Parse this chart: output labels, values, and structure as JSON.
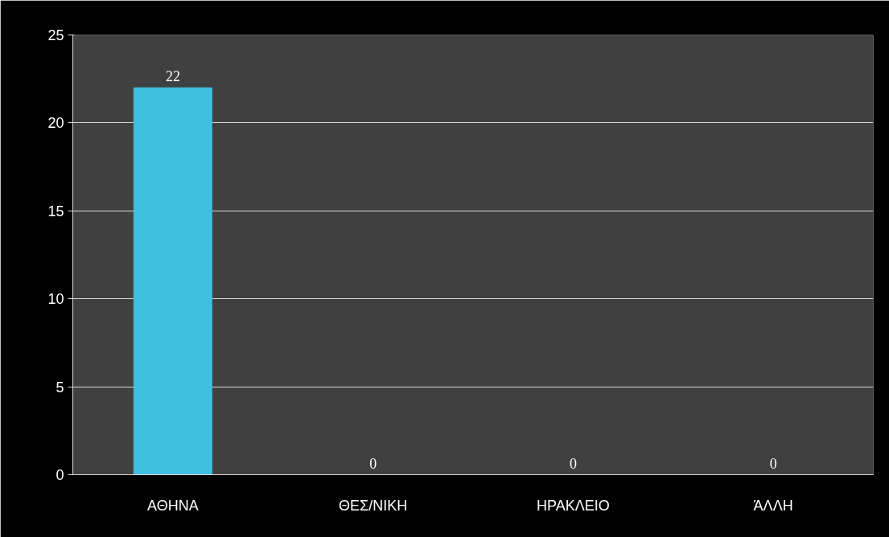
{
  "chart_data": {
    "type": "bar",
    "categories": [
      "ΑΘΗΝΑ",
      "ΘΕΣ/ΝΙΚΗ",
      "ΗΡΑΚΛΕΙΟ",
      "ΆΛΛΗ"
    ],
    "values": [
      22,
      0,
      0,
      0
    ],
    "color": "#3ebfe0",
    "ylim": [
      0,
      25
    ],
    "yticks": [
      0,
      5,
      10,
      15,
      20,
      25
    ],
    "grid": "y",
    "data_labels": true
  }
}
